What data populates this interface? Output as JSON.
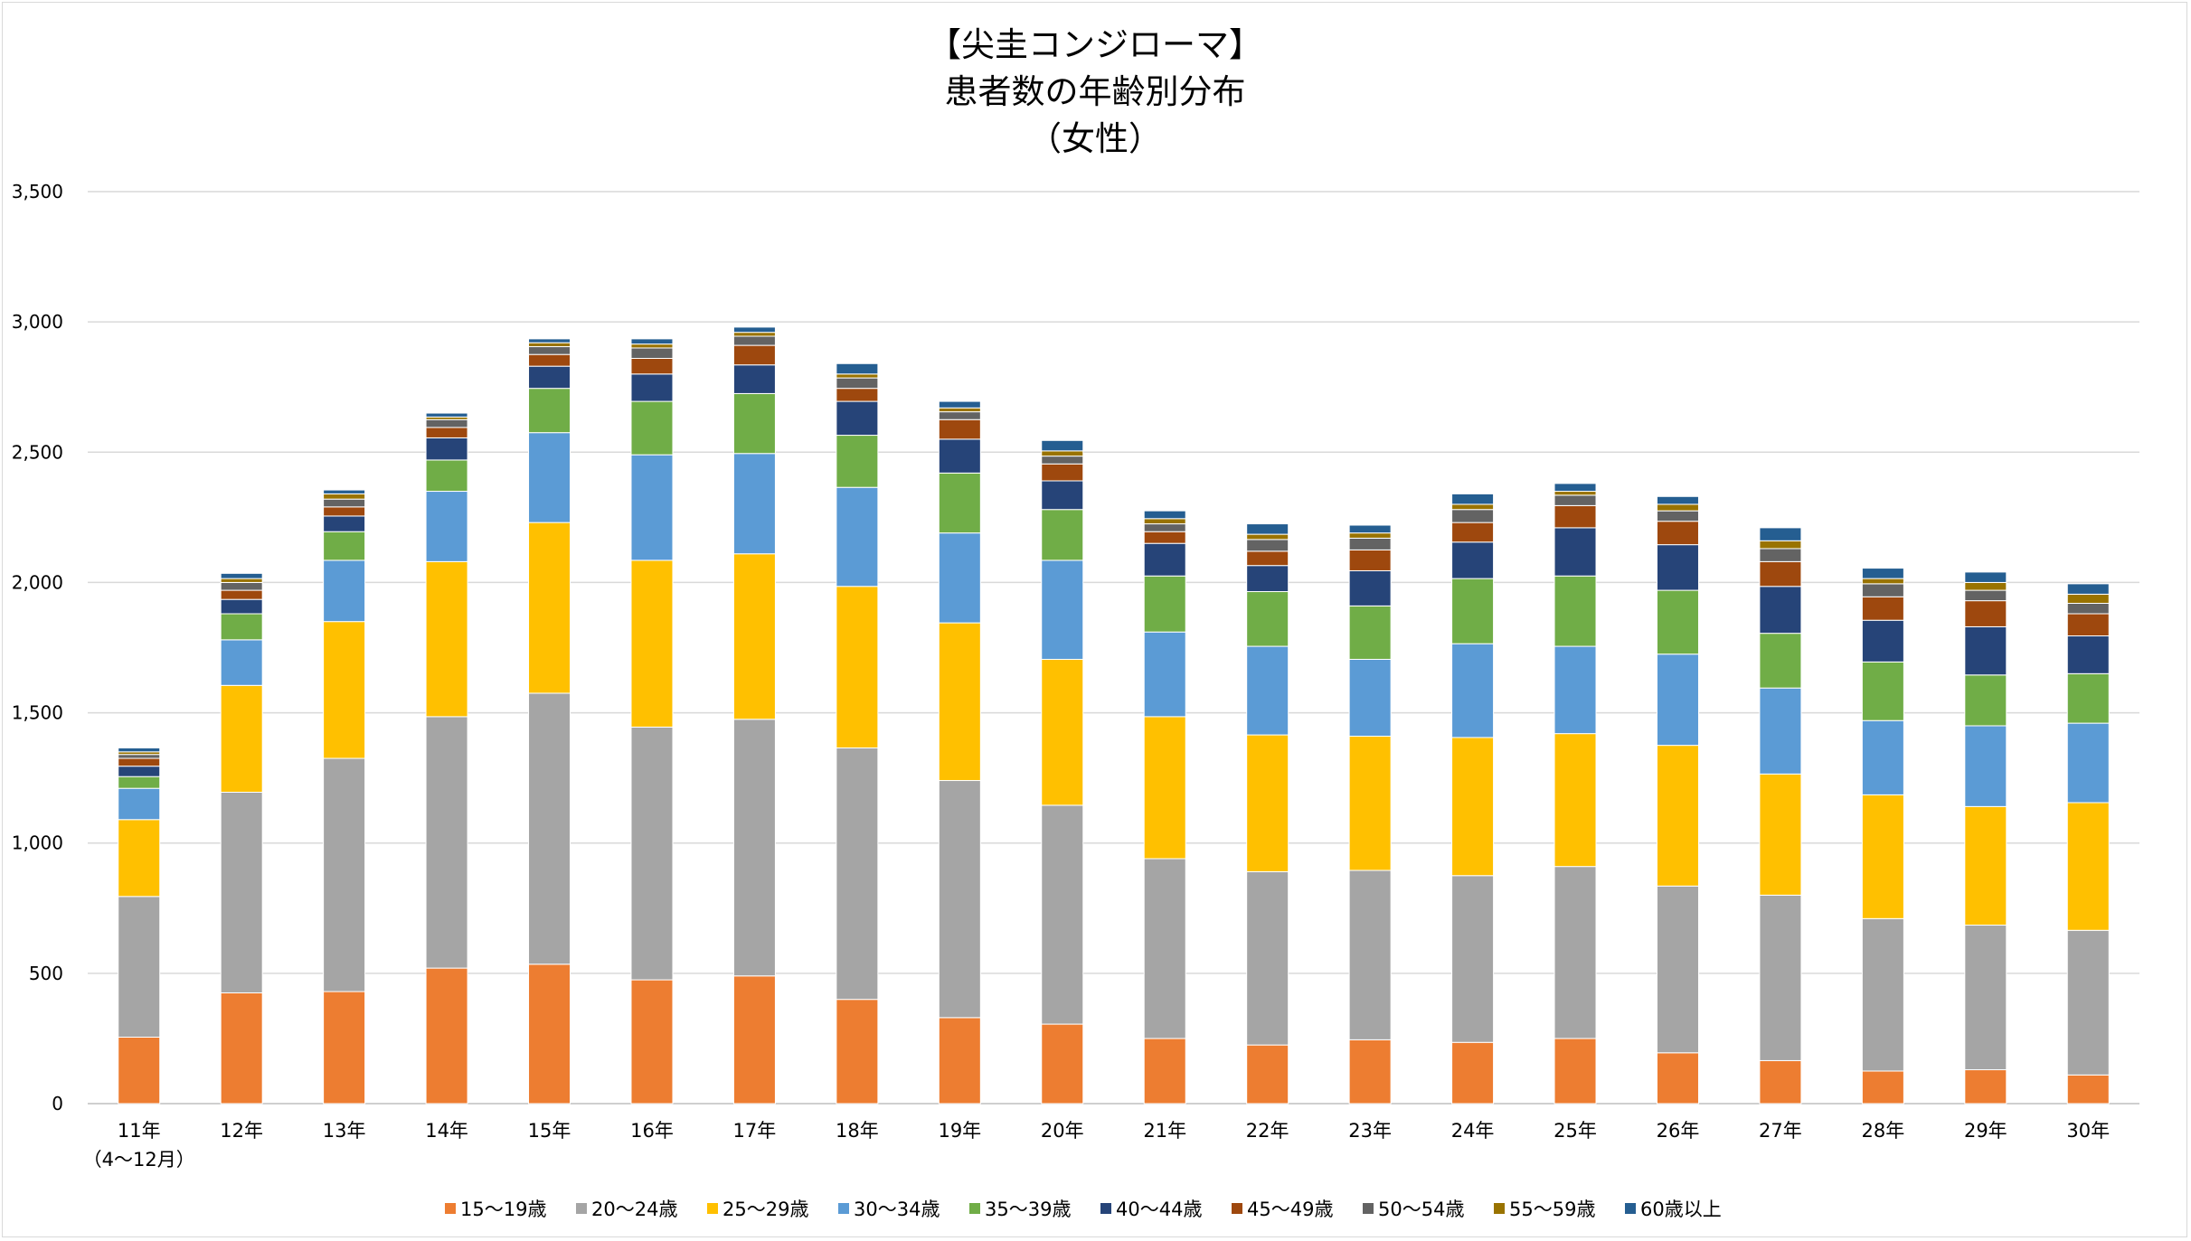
{
  "chart_data": {
    "type": "bar",
    "stacked": true,
    "title_lines": [
      "【尖圭コンジローマ】",
      "患者数の年齢別分布",
      "（女性）"
    ],
    "categories": [
      "11年",
      "12年",
      "13年",
      "14年",
      "15年",
      "16年",
      "17年",
      "18年",
      "19年",
      "20年",
      "21年",
      "22年",
      "23年",
      "24年",
      "25年",
      "26年",
      "27年",
      "28年",
      "29年",
      "30年"
    ],
    "category_sublabels": [
      "（4～12月）",
      "",
      "",
      "",
      "",
      "",
      "",
      "",
      "",
      "",
      "",
      "",
      "",
      "",
      "",
      "",
      "",
      "",
      "",
      ""
    ],
    "ylim": [
      0,
      3500
    ],
    "yticks": [
      0,
      500,
      1000,
      1500,
      2000,
      2500,
      3000,
      3500
    ],
    "ytick_labels": [
      "0",
      "500",
      "1,000",
      "1,500",
      "2,000",
      "2,500",
      "3,000",
      "3,500"
    ],
    "grid": true,
    "legend_position": "bottom",
    "series": [
      {
        "name": "15～19歳",
        "color": "#ED7D31",
        "values": [
          255,
          425,
          430,
          520,
          535,
          475,
          490,
          400,
          330,
          305,
          250,
          225,
          245,
          235,
          250,
          195,
          165,
          125,
          130,
          110
        ]
      },
      {
        "name": "20～24歳",
        "color": "#A5A5A5",
        "values": [
          540,
          770,
          895,
          965,
          1040,
          970,
          985,
          965,
          910,
          840,
          690,
          665,
          650,
          640,
          660,
          640,
          635,
          585,
          555,
          555
        ]
      },
      {
        "name": "25～29歳",
        "color": "#FFC000",
        "values": [
          295,
          410,
          525,
          595,
          655,
          640,
          635,
          620,
          605,
          560,
          545,
          525,
          515,
          530,
          510,
          540,
          465,
          475,
          455,
          490
        ]
      },
      {
        "name": "30～34歳",
        "color": "#5B9BD5",
        "values": [
          120,
          175,
          235,
          270,
          345,
          405,
          385,
          380,
          345,
          380,
          325,
          340,
          295,
          360,
          335,
          350,
          330,
          285,
          310,
          305
        ]
      },
      {
        "name": "35～39歳",
        "color": "#70AD47",
        "values": [
          45,
          100,
          110,
          120,
          170,
          205,
          230,
          200,
          230,
          195,
          215,
          210,
          205,
          250,
          270,
          245,
          210,
          225,
          195,
          190
        ]
      },
      {
        "name": "40～44歳",
        "color": "#264478",
        "values": [
          40,
          55,
          60,
          85,
          85,
          105,
          110,
          130,
          130,
          110,
          125,
          100,
          135,
          140,
          185,
          175,
          180,
          160,
          185,
          145
        ]
      },
      {
        "name": "45～49歳",
        "color": "#9E480E",
        "values": [
          30,
          35,
          35,
          40,
          45,
          60,
          75,
          50,
          75,
          65,
          45,
          55,
          80,
          75,
          85,
          90,
          95,
          90,
          100,
          85
        ]
      },
      {
        "name": "50～54歳",
        "color": "#636363",
        "values": [
          15,
          30,
          30,
          30,
          30,
          40,
          35,
          40,
          30,
          30,
          30,
          45,
          45,
          50,
          40,
          40,
          50,
          50,
          40,
          40
        ]
      },
      {
        "name": "55～59歳",
        "color": "#997300",
        "values": [
          10,
          15,
          20,
          10,
          15,
          15,
          15,
          15,
          15,
          20,
          20,
          20,
          20,
          20,
          15,
          25,
          30,
          20,
          30,
          35
        ]
      },
      {
        "name": "60歳以上",
        "color": "#255E91",
        "values": [
          15,
          20,
          15,
          15,
          15,
          20,
          20,
          40,
          25,
          40,
          30,
          40,
          30,
          40,
          30,
          30,
          50,
          40,
          40,
          40
        ]
      }
    ]
  }
}
